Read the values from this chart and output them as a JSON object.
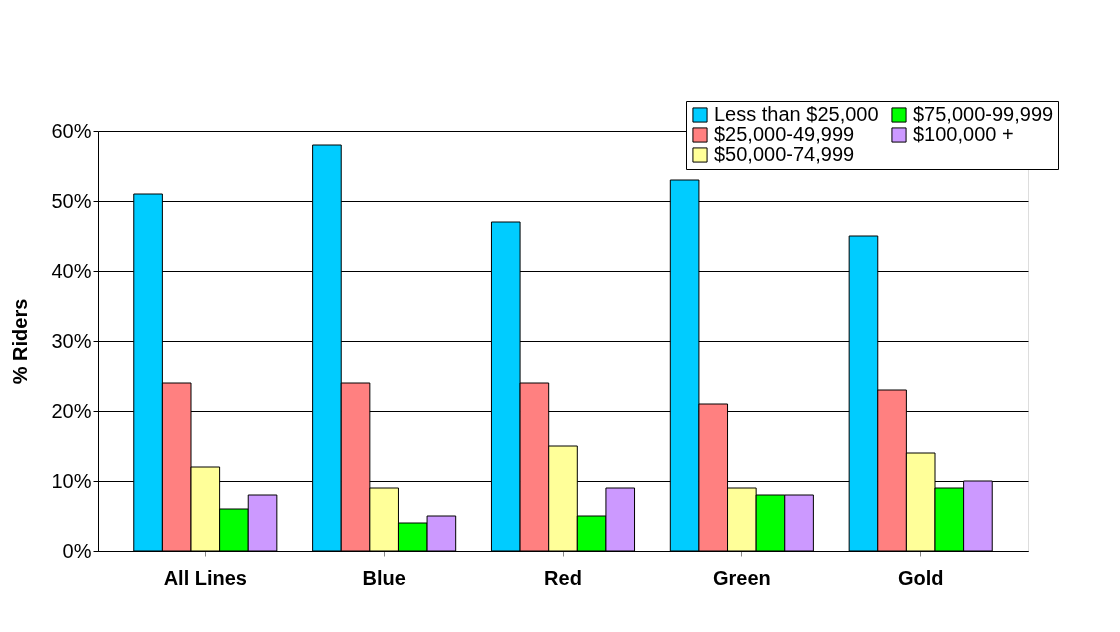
{
  "chart_data": {
    "type": "bar",
    "ylabel": "% Riders",
    "categories": [
      "All Lines",
      "Blue",
      "Red",
      "Green",
      "Gold"
    ],
    "series": [
      {
        "name": "Less than $25,000",
        "color": "#00ccff",
        "values": [
          51,
          58,
          47,
          53,
          45
        ]
      },
      {
        "name": "$25,000-49,999",
        "color": "#ff8080",
        "values": [
          24,
          24,
          24,
          21,
          23
        ]
      },
      {
        "name": "$50,000-74,999",
        "color": "#ffff99",
        "values": [
          12,
          9,
          15,
          9,
          14
        ]
      },
      {
        "name": "$75,000-99,999",
        "color": "#00ff00",
        "values": [
          6,
          4,
          5,
          8,
          9
        ]
      },
      {
        "name": "$100,000 +",
        "color": "#cc99ff",
        "values": [
          8,
          5,
          9,
          8,
          10
        ]
      }
    ],
    "ylim": [
      0,
      60
    ],
    "yticks": [
      {
        "value": 0,
        "label": "0%"
      },
      {
        "value": 10,
        "label": "10%"
      },
      {
        "value": 20,
        "label": "20%"
      },
      {
        "value": 30,
        "label": "30%"
      },
      {
        "value": 40,
        "label": "40%"
      },
      {
        "value": 50,
        "label": "50%"
      },
      {
        "value": 60,
        "label": "60%"
      }
    ],
    "grid": "y",
    "legend": "top right"
  }
}
